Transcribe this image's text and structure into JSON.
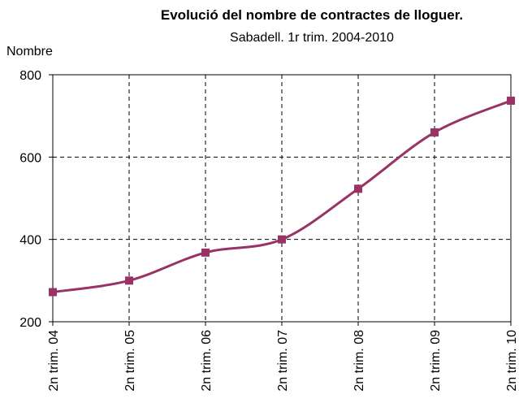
{
  "chart_data": {
    "type": "line",
    "title": "Evolució del nombre de contractes de lloguer.",
    "subtitle": "Sabadell. 1r trim. 2004-2010",
    "y_label": "Nombre",
    "categories": [
      "2n trim. 04",
      "2n trim. 05",
      "2n trim. 06",
      "2n trim. 07",
      "2n trim. 08",
      "2n trim. 09",
      "2n trim. 10"
    ],
    "series": [
      {
        "name": "Nombre",
        "color": "#993366",
        "values": [
          272,
          300,
          368,
          400,
          523,
          660,
          737
        ]
      }
    ],
    "ylim": [
      200,
      800
    ],
    "yticks": [
      200,
      400,
      600,
      800
    ],
    "grid": true
  }
}
